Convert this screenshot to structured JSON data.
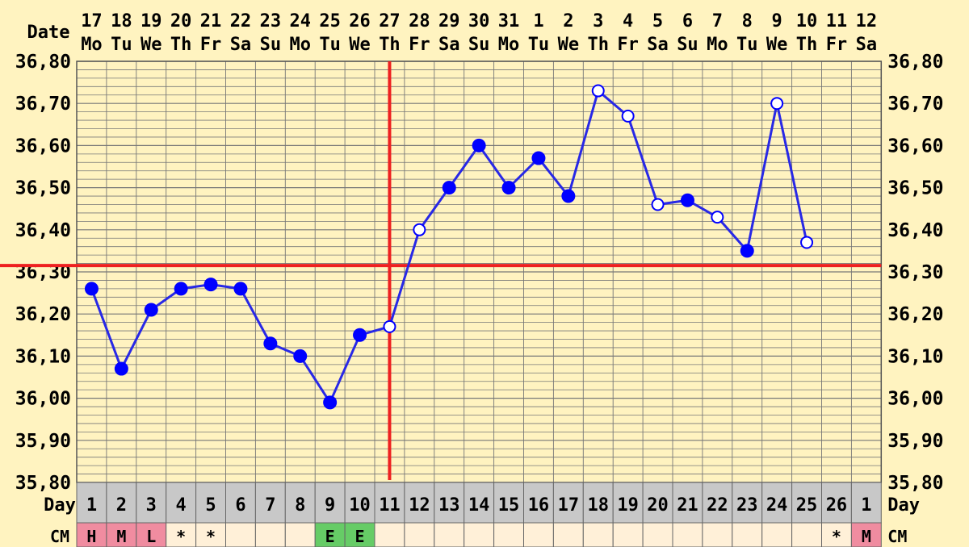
{
  "chart_data": {
    "type": "line",
    "title": "",
    "header": {
      "date_label": "Date",
      "day_label": "Day",
      "cm_label": "CM"
    },
    "dates": [
      "17",
      "18",
      "19",
      "20",
      "21",
      "22",
      "23",
      "24",
      "25",
      "26",
      "27",
      "28",
      "29",
      "30",
      "31",
      "1",
      "2",
      "3",
      "4",
      "5",
      "6",
      "7",
      "8",
      "9",
      "10",
      "11",
      "12"
    ],
    "weekdays": [
      "Mo",
      "Tu",
      "We",
      "Th",
      "Fr",
      "Sa",
      "Su",
      "Mo",
      "Tu",
      "We",
      "Th",
      "Fr",
      "Sa",
      "Su",
      "Mo",
      "Tu",
      "We",
      "Th",
      "Fr",
      "Sa",
      "Su",
      "Mo",
      "Tu",
      "We",
      "Th",
      "Fr",
      "Sa"
    ],
    "days": [
      "1",
      "2",
      "3",
      "4",
      "5",
      "6",
      "7",
      "8",
      "9",
      "10",
      "11",
      "12",
      "13",
      "14",
      "15",
      "16",
      "17",
      "18",
      "19",
      "20",
      "21",
      "22",
      "23",
      "24",
      "25",
      "26",
      "1"
    ],
    "cm": [
      "H",
      "M",
      "L",
      "*",
      "*",
      "",
      "",
      "",
      "E",
      "E",
      "",
      "",
      "",
      "",
      "",
      "",
      "",
      "",
      "",
      "",
      "",
      "",
      "",
      "",
      "",
      "*",
      "M"
    ],
    "cm_colors": {
      "H": "#f08ca0",
      "M": "#f08ca0",
      "L": "#f08ca0",
      "E": "#66cc66"
    },
    "y_ticks": [
      "35,80",
      "35,90",
      "36,00",
      "36,10",
      "36,20",
      "36,30",
      "36,40",
      "36,50",
      "36,60",
      "36,70",
      "36,80"
    ],
    "ylim": [
      35.8,
      36.8
    ],
    "temperatures": [
      36.26,
      36.07,
      36.21,
      36.26,
      36.27,
      36.26,
      36.13,
      36.1,
      35.99,
      36.15,
      36.17,
      36.4,
      36.5,
      36.6,
      36.5,
      36.57,
      36.48,
      36.73,
      36.67,
      36.46,
      36.47,
      36.43,
      36.35,
      36.7,
      36.37,
      null,
      null
    ],
    "open_markers": [
      false,
      false,
      false,
      false,
      false,
      false,
      false,
      false,
      false,
      false,
      true,
      true,
      false,
      false,
      false,
      false,
      false,
      true,
      true,
      true,
      false,
      true,
      false,
      true,
      true,
      false,
      false
    ],
    "coverline": 36.315,
    "ovulation_day_index": 10,
    "colors": {
      "background": "#fff3c0",
      "grid": "#777777",
      "series": "#2828e6",
      "marker": "#0000ff",
      "reference": "#ee2020",
      "day_row": "#c8c8c8",
      "cm_row": "#fff0d8"
    }
  }
}
